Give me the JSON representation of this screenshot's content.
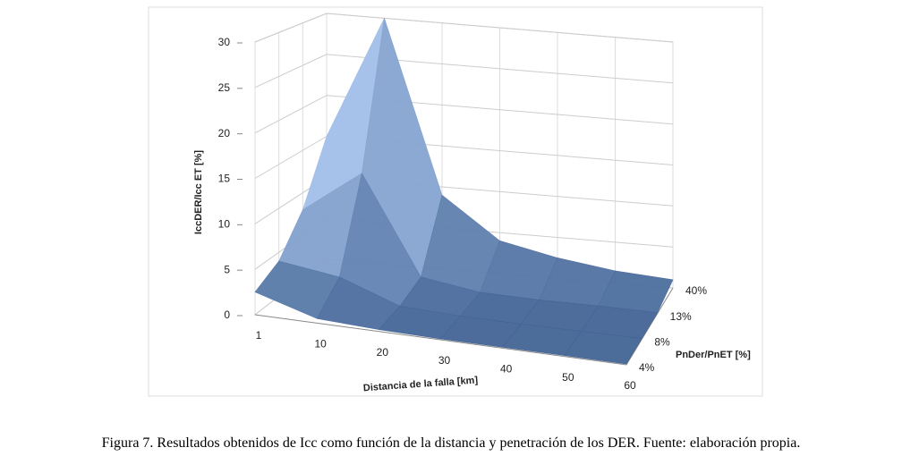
{
  "chart_data": {
    "type": "surface",
    "z_axis_label": "IccDER/Icc ET [%]",
    "x_axis_label": "Distancia de la falla [km]",
    "depth_axis_label": "PnDer/PnET [%]",
    "categories": [
      "1",
      "10",
      "20",
      "30",
      "40",
      "50",
      "60"
    ],
    "series": [
      {
        "name": "4%",
        "values": [
          2.5,
          0.5,
          0.2,
          0.1,
          0.1,
          0.1,
          0.1
        ]
      },
      {
        "name": "8%",
        "values": [
          4,
          3,
          0.5,
          0.2,
          0.1,
          0.1,
          0.1
        ]
      },
      {
        "name": "13%",
        "values": [
          8,
          13,
          1.5,
          0.4,
          0.2,
          0.2,
          0.1
        ]
      },
      {
        "name": "40%",
        "values": [
          15,
          30,
          9,
          4,
          2.5,
          1.5,
          1
        ]
      }
    ],
    "ylim": [
      0,
      30
    ],
    "yticks": [
      0,
      5,
      10,
      15,
      20,
      25,
      30
    ],
    "grid": true,
    "colors": [
      "#3b5d8f",
      "#a9c6ef"
    ]
  },
  "caption": "Figura 7. Resultados obtenidos de Icc como función de la distancia y penetración de los DER. Fuente: elaboración propia."
}
